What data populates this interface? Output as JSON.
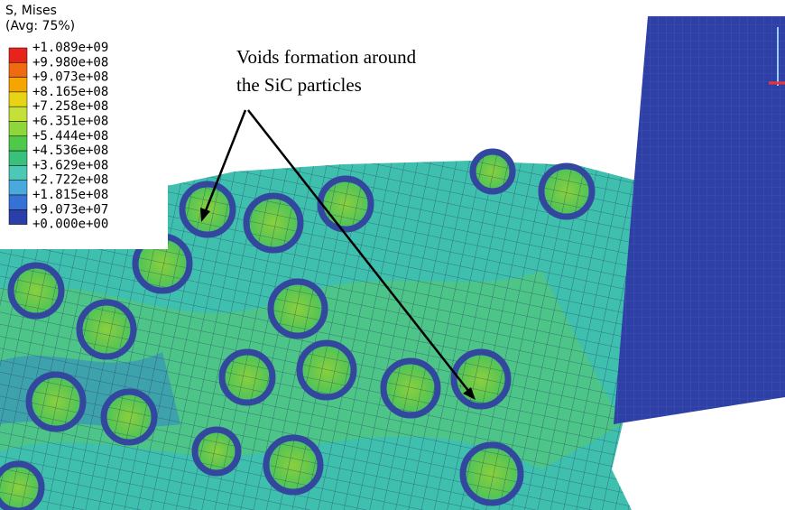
{
  "legend": {
    "title": "S, Mises",
    "subtitle": "(Avg: 75%)",
    "labels": [
      "+1.089e+09",
      "+9.980e+08",
      "+9.073e+08",
      "+8.165e+08",
      "+7.258e+08",
      "+6.351e+08",
      "+5.444e+08",
      "+4.536e+08",
      "+3.629e+08",
      "+2.722e+08",
      "+1.815e+08",
      "+9.073e+07",
      "+0.000e+00"
    ]
  },
  "annotation": {
    "lines": [
      "Voids formation around",
      "the SiC particles"
    ]
  }
}
